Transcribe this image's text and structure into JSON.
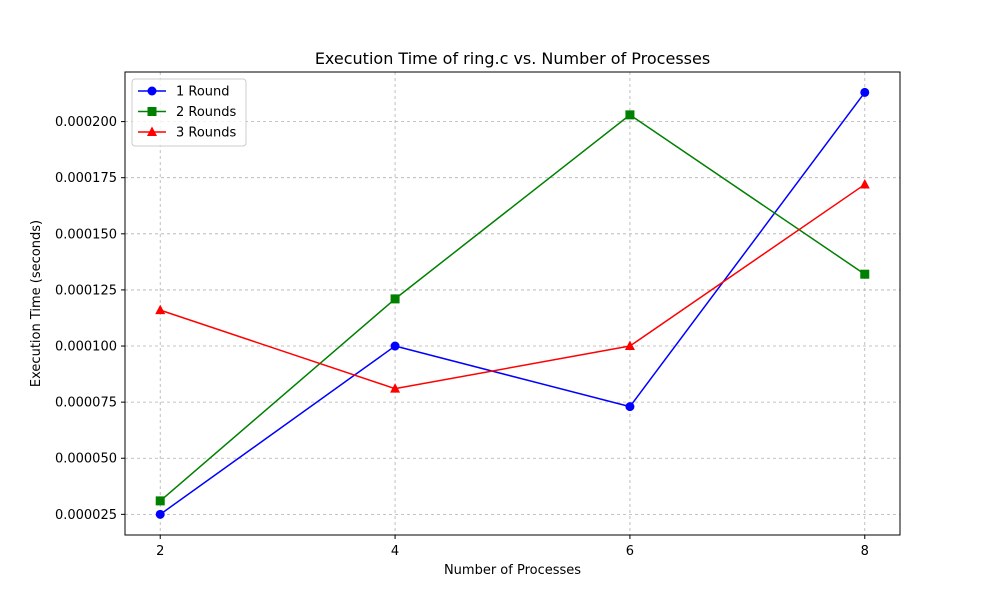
{
  "chart_data": {
    "type": "line",
    "title": "Execution Time of ring.c vs. Number of Processes",
    "xlabel": "Number of Processes",
    "ylabel": "Execution Time (seconds)",
    "x": [
      2,
      4,
      6,
      8
    ],
    "x_ticks": [
      "2",
      "4",
      "6",
      "8"
    ],
    "xlim": [
      1.7,
      8.3
    ],
    "ylim": [
      1.58e-05,
      0.0002221
    ],
    "y_ticks": [
      2.5e-05,
      5e-05,
      7.5e-05,
      0.0001,
      0.000125,
      0.00015,
      0.000175,
      0.0002
    ],
    "y_tick_labels": [
      "0.000025",
      "0.000050",
      "0.000075",
      "0.000100",
      "0.000125",
      "0.000150",
      "0.000175",
      "0.000200"
    ],
    "grid": true,
    "legend_position": "top-left",
    "series": [
      {
        "name": "1 Round",
        "color": "#0000ff",
        "marker": "circle",
        "values": [
          2.5e-05,
          0.0001,
          7.3e-05,
          0.000213
        ]
      },
      {
        "name": "2 Rounds",
        "color": "#008000",
        "marker": "square",
        "values": [
          3.1e-05,
          0.000121,
          0.000203,
          0.000132
        ]
      },
      {
        "name": "3 Rounds",
        "color": "#ff0000",
        "marker": "triangle",
        "values": [
          0.000116,
          8.1e-05,
          0.0001,
          0.000172
        ]
      }
    ]
  }
}
